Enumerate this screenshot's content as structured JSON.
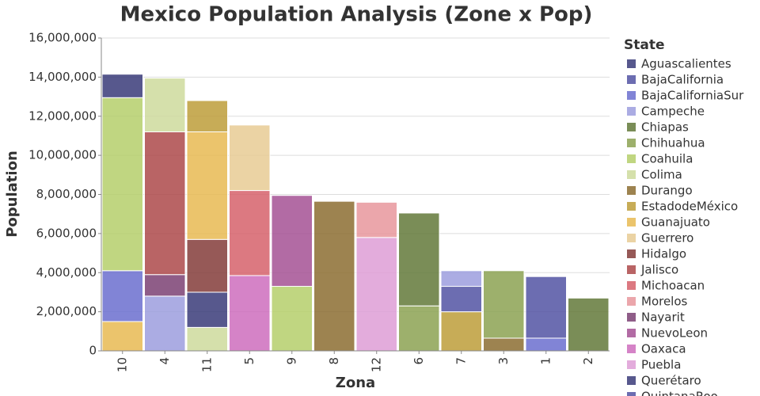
{
  "chart_data": {
    "type": "stacked_bar",
    "title": "Mexico Population Analysis (Zone x Pop)",
    "x_label": "Zona",
    "y_label": "Population",
    "legend_title": "State",
    "grid": true,
    "ylim": [
      0,
      16000000
    ],
    "yticks": [
      0,
      {
        "value": 2000000,
        "label": "2,000,000"
      },
      {
        "value": 4000000,
        "label": "4,000,000"
      },
      {
        "value": 6000000,
        "label": "6,000,000"
      },
      {
        "value": 8000000,
        "label": "8,000,000"
      },
      {
        "value": 10000000,
        "label": "10,000,000"
      },
      {
        "value": 12000000,
        "label": "12,000,000"
      },
      {
        "value": 14000000,
        "label": "14,000,000"
      },
      {
        "value": 16000000,
        "label": "16,000,000"
      }
    ],
    "series": [
      {
        "name": "Aguascalientes",
        "color": "#393b79"
      },
      {
        "name": "BajaCalifornia",
        "color": "#5254a3"
      },
      {
        "name": "BajaCaliforniaSur",
        "color": "#6b6ecf"
      },
      {
        "name": "Campeche",
        "color": "#9c9ede"
      },
      {
        "name": "Chiapas",
        "color": "#637939"
      },
      {
        "name": "Chihuahua",
        "color": "#8ca252"
      },
      {
        "name": "Coahuila",
        "color": "#b5cf6b"
      },
      {
        "name": "Colima",
        "color": "#cedb9c"
      },
      {
        "name": "Durango",
        "color": "#8c6d31"
      },
      {
        "name": "EstadodeMéxico",
        "color": "#bd9e39"
      },
      {
        "name": "Guanajuato",
        "color": "#e7ba52"
      },
      {
        "name": "Guerrero",
        "color": "#e7cb94"
      },
      {
        "name": "Hidalgo",
        "color": "#843c39"
      },
      {
        "name": "Jalisco",
        "color": "#ad494a"
      },
      {
        "name": "Michoacan",
        "color": "#d6616b"
      },
      {
        "name": "Morelos",
        "color": "#e7969c"
      },
      {
        "name": "Nayarit",
        "color": "#7b4173"
      },
      {
        "name": "NuevoLeon",
        "color": "#a55194"
      },
      {
        "name": "Oaxaca",
        "color": "#ce6dbd"
      },
      {
        "name": "Puebla",
        "color": "#de9ed6"
      },
      {
        "name": "Querétaro",
        "color": "#393b79"
      },
      {
        "name": "QuintanaRoo",
        "color": "#5254a3"
      }
    ],
    "categories": [
      "10",
      "4",
      "11",
      "5",
      "9",
      "8",
      "12",
      "6",
      "7",
      "3",
      "1",
      "2"
    ],
    "stacks": [
      [
        {
          "state": "Guanajuato",
          "value": 1500000
        },
        {
          "state": "BajaCaliforniaSur",
          "value": 2600000
        },
        {
          "state": "Coahuila",
          "value": 8850000
        },
        {
          "state": "Aguascalientes",
          "value": 1200000
        }
      ],
      [
        {
          "state": "Campeche",
          "value": 2800000
        },
        {
          "state": "Nayarit",
          "value": 1100000
        },
        {
          "state": "Jalisco",
          "value": 7300000
        },
        {
          "state": "Colima",
          "value": 2750000
        }
      ],
      [
        {
          "state": "Colima",
          "value": 1200000
        },
        {
          "state": "Querétaro",
          "value": 1800000
        },
        {
          "state": "Hidalgo",
          "value": 2700000
        },
        {
          "state": "Guanajuato",
          "value": 5500000
        },
        {
          "state": "EstadodeMéxico",
          "value": 1600000
        }
      ],
      [
        {
          "state": "Oaxaca",
          "value": 3850000
        },
        {
          "state": "Michoacan",
          "value": 4350000
        },
        {
          "state": "Guerrero",
          "value": 3350000
        }
      ],
      [
        {
          "state": "Coahuila",
          "value": 3300000
        },
        {
          "state": "NuevoLeon",
          "value": 4650000
        }
      ],
      [
        {
          "state": "Durango",
          "value": 7650000
        }
      ],
      [
        {
          "state": "Puebla",
          "value": 5800000
        },
        {
          "state": "Morelos",
          "value": 1800000
        }
      ],
      [
        {
          "state": "Chihuahua",
          "value": 2300000
        },
        {
          "state": "Chiapas",
          "value": 4750000
        }
      ],
      [
        {
          "state": "EstadodeMéxico",
          "value": 2000000
        },
        {
          "state": "BajaCalifornia",
          "value": 1300000
        },
        {
          "state": "Campeche",
          "value": 800000
        }
      ],
      [
        {
          "state": "Durango",
          "value": 650000
        },
        {
          "state": "Chihuahua",
          "value": 3450000
        }
      ],
      [
        {
          "state": "BajaCaliforniaSur",
          "value": 650000
        },
        {
          "state": "BajaCalifornia",
          "value": 3150000
        }
      ],
      [
        {
          "state": "Chiapas",
          "value": 2700000
        }
      ]
    ]
  }
}
